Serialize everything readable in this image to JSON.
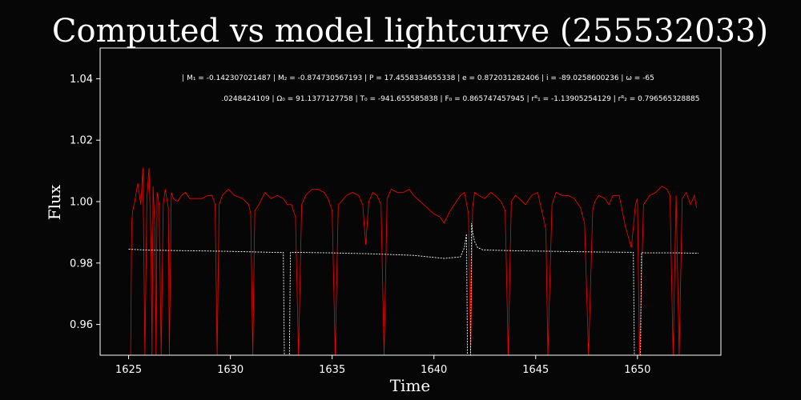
{
  "chart_data": {
    "type": "line",
    "title": "Computed vs model lightcurve (255532033)",
    "xlabel": "Time",
    "ylabel": "Flux",
    "xlim": [
      1623.6,
      1654.1
    ],
    "ylim": [
      0.95,
      1.05
    ],
    "x_ticks": [
      "1625",
      "1630",
      "1635",
      "1640",
      "1645",
      "1650"
    ],
    "x_tick_values": [
      1625,
      1630,
      1635,
      1640,
      1645,
      1650
    ],
    "y_ticks": [
      "0.96",
      "0.98",
      "1.00",
      "1.02",
      "1.04"
    ],
    "y_tick_values": [
      0.96,
      0.98,
      1.0,
      1.02,
      1.04
    ],
    "grid": false,
    "annotation_line1": "| M₁ = -0.142307021487 | M₂ = -0.874730567193 | P = 17.4558334655338 | e = 0.872031282406 | i = -89.0258600236 | ω = -65",
    "annotation_line2": ".0248424109 | Ω₀ = 91.1377127758 | T₀ = -941.655585838 | F₀ = 0.865747457945 | rᴿ₁ = -1.13905254129 | rᴿ₂ = 0.796565328885",
    "colors": {
      "background": "#060606",
      "axes": "#ffffff",
      "observed": "#ff0000",
      "model": "#ffffff"
    },
    "series": [
      {
        "style": "solid",
        "color": "#ff0000",
        "x": [
          1625.1,
          1625.15,
          1625.2,
          1625.3,
          1625.45,
          1625.6,
          1625.7,
          1625.8,
          1625.9,
          1626.0,
          1626.1,
          1626.15,
          1626.2,
          1626.3,
          1626.35,
          1626.4,
          1626.5,
          1626.6,
          1626.7,
          1626.8,
          1626.95,
          1627.0,
          1627.1,
          1627.2,
          1627.4,
          1627.6,
          1627.8,
          1628.0,
          1628.3,
          1628.6,
          1628.9,
          1629.1,
          1629.25,
          1629.35,
          1629.45,
          1629.6,
          1629.9,
          1630.2,
          1630.6,
          1630.9,
          1631.0,
          1631.1,
          1631.2,
          1631.4,
          1631.7,
          1632.0,
          1632.3,
          1632.6,
          1632.8,
          1633.0,
          1633.2,
          1633.35,
          1633.5,
          1633.7,
          1634.0,
          1634.3,
          1634.6,
          1634.8,
          1635.0,
          1635.15,
          1635.3,
          1635.45,
          1635.7,
          1636.0,
          1636.3,
          1636.5,
          1636.65,
          1636.8,
          1637.0,
          1637.2,
          1637.4,
          1637.55,
          1637.7,
          1637.9,
          1638.2,
          1638.5,
          1638.8,
          1638.9,
          1639.0,
          1639.5,
          1640.0,
          1640.3,
          1640.5,
          1640.8,
          1641.0,
          1641.3,
          1641.5,
          1641.7,
          1641.8,
          1641.9,
          1642.0,
          1642.2,
          1642.5,
          1642.8,
          1643.0,
          1643.3,
          1643.5,
          1643.65,
          1643.8,
          1644.0,
          1644.2,
          1644.5,
          1644.8,
          1645.1,
          1645.3,
          1645.5,
          1645.6,
          1645.8,
          1646.0,
          1646.3,
          1646.6,
          1646.9,
          1647.2,
          1647.4,
          1647.6,
          1647.8,
          1647.9,
          1648.1,
          1648.4,
          1648.6,
          1648.8,
          1649.1,
          1649.4,
          1649.7,
          1649.9,
          1650.0,
          1650.1,
          1650.3,
          1650.6,
          1650.9,
          1651.2,
          1651.45,
          1651.6,
          1651.75,
          1651.9,
          1652.05,
          1652.2,
          1652.4,
          1652.6,
          1652.8,
          1652.9
        ],
        "y": [
          0.95,
          0.993,
          0.997,
          1.0,
          1.006,
          0.999,
          1.011,
          0.95,
          1.001,
          1.011,
          0.987,
          0.95,
          1.005,
          0.99,
          0.95,
          1.003,
          0.999,
          0.95,
          0.999,
          1.004,
          0.998,
          0.95,
          1.003,
          1.001,
          1.0,
          1.002,
          1.003,
          1.001,
          1.001,
          1.001,
          1.002,
          1.002,
          0.999,
          0.95,
          0.999,
          1.002,
          1.004,
          1.002,
          1.001,
          0.999,
          0.996,
          0.95,
          0.997,
          0.999,
          1.003,
          1.001,
          1.002,
          1.001,
          0.999,
          0.999,
          0.995,
          0.95,
          0.999,
          1.002,
          1.004,
          1.004,
          1.003,
          1.001,
          0.997,
          0.95,
          0.999,
          1.0,
          1.002,
          1.003,
          1.002,
          0.999,
          0.986,
          1.0,
          1.003,
          1.002,
          0.999,
          0.95,
          1.001,
          1.004,
          1.003,
          1.003,
          1.004,
          1.003,
          1.002,
          0.999,
          0.996,
          0.995,
          0.993,
          0.997,
          0.999,
          1.002,
          1.003,
          0.996,
          0.95,
          0.998,
          1.003,
          1.002,
          1.001,
          1.003,
          1.002,
          1.0,
          0.997,
          0.95,
          1.0,
          1.002,
          1.001,
          0.999,
          1.002,
          1.003,
          0.997,
          0.991,
          0.95,
          0.999,
          1.003,
          1.002,
          1.002,
          1.001,
          0.998,
          0.993,
          0.95,
          0.997,
          1.0,
          1.002,
          1.001,
          0.999,
          1.002,
          1.002,
          0.992,
          0.985,
          0.999,
          1.001,
          0.95,
          0.999,
          1.002,
          1.003,
          1.005,
          1.004,
          1.002,
          0.95,
          1.002,
          0.95,
          1.001,
          1.003,
          0.999,
          1.002,
          0.998
        ]
      },
      {
        "style": "dashed",
        "color": "#ffffff",
        "x": [
          1625.0,
          1626.0,
          1628.0,
          1630.0,
          1632.0,
          1632.6,
          1632.65,
          1632.7,
          1632.9,
          1632.95,
          1633.0,
          1635.0,
          1637.0,
          1639.0,
          1640.5,
          1641.3,
          1641.5,
          1641.6,
          1641.65,
          1641.8,
          1641.85,
          1641.9,
          1642.0,
          1642.15,
          1642.4,
          1642.8,
          1644.0,
          1646.0,
          1648.0,
          1649.8,
          1649.85,
          1649.9,
          1650.15,
          1650.2,
          1650.3,
          1651.0,
          1652.0,
          1653.0
        ],
        "y": [
          0.9845,
          0.9842,
          0.984,
          0.9838,
          0.9835,
          0.9835,
          0.95,
          0.95,
          0.95,
          0.9835,
          0.9835,
          0.9833,
          0.983,
          0.9825,
          0.9815,
          0.982,
          0.985,
          0.9895,
          0.95,
          0.95,
          0.993,
          0.99,
          0.987,
          0.985,
          0.9843,
          0.9842,
          0.984,
          0.9838,
          0.9836,
          0.9835,
          0.95,
          0.95,
          0.95,
          0.9835,
          0.9833,
          0.9833,
          0.9833,
          0.9832
        ]
      }
    ]
  }
}
